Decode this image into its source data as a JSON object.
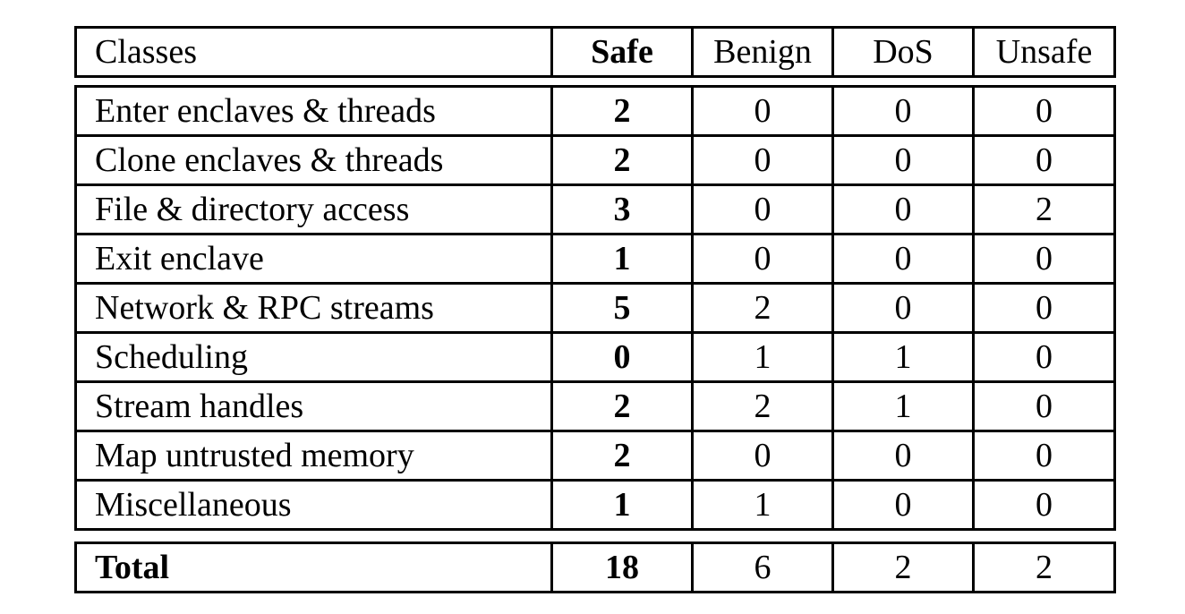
{
  "table": {
    "header": [
      "Classes",
      "Safe",
      "Benign",
      "DoS",
      "Unsafe"
    ],
    "rows": [
      [
        "Enter enclaves & threads",
        "2",
        "0",
        "0",
        "0"
      ],
      [
        "Clone enclaves & threads",
        "2",
        "0",
        "0",
        "0"
      ],
      [
        "File & directory access",
        "3",
        "0",
        "0",
        "2"
      ],
      [
        "Exit enclave",
        "1",
        "0",
        "0",
        "0"
      ],
      [
        "Network & RPC streams",
        "5",
        "2",
        "0",
        "0"
      ],
      [
        "Scheduling",
        "0",
        "1",
        "1",
        "0"
      ],
      [
        "Stream handles",
        "2",
        "2",
        "1",
        "0"
      ],
      [
        "Map untrusted memory",
        "2",
        "0",
        "0",
        "0"
      ],
      [
        "Miscellaneous",
        "1",
        "1",
        "0",
        "0"
      ]
    ],
    "total": [
      "Total",
      "18",
      "6",
      "2",
      "2"
    ]
  }
}
